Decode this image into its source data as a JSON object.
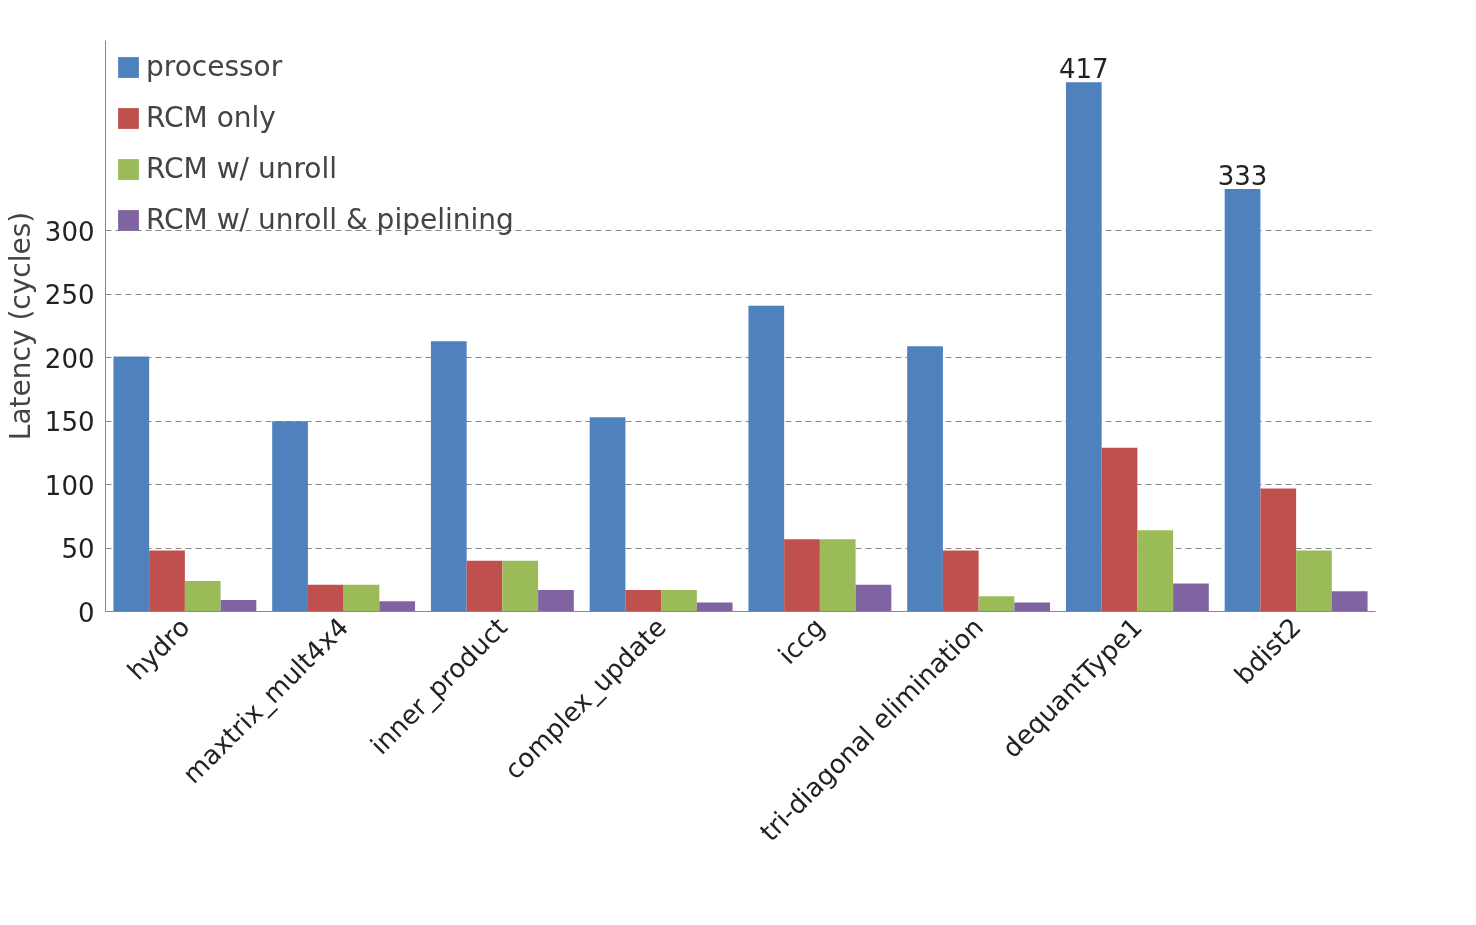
{
  "chart_data": {
    "type": "bar",
    "ylabel": "Latency (cycles)",
    "categories": [
      "hydro",
      "maxtrix_mult4x4",
      "inner_product",
      "complex_update",
      "iccg",
      "tri-diagonal elimination",
      "dequantType1",
      "bdist2"
    ],
    "series": [
      {
        "name": "processor",
        "color": "#4f81bd",
        "values": [
          201,
          150,
          213,
          153,
          241,
          209,
          417,
          333
        ],
        "value_labels": [
          null,
          null,
          null,
          null,
          null,
          null,
          "417",
          "333"
        ]
      },
      {
        "name": "RCM only",
        "color": "#c0504d",
        "values": [
          48,
          21,
          40,
          17,
          57,
          48,
          129,
          97
        ]
      },
      {
        "name": "RCM w/ unroll",
        "color": "#9bbb59",
        "values": [
          24,
          21,
          40,
          17,
          57,
          12,
          64,
          48
        ]
      },
      {
        "name": "RCM w/ unroll & pipelining",
        "color": "#8064a2",
        "values": [
          9,
          8,
          17,
          7,
          21,
          7,
          22,
          16
        ]
      }
    ],
    "ylim": [
      0,
      450
    ],
    "yticks": [
      0,
      50,
      100,
      150,
      200,
      250,
      300
    ],
    "grid": "y",
    "legend": "top left"
  }
}
